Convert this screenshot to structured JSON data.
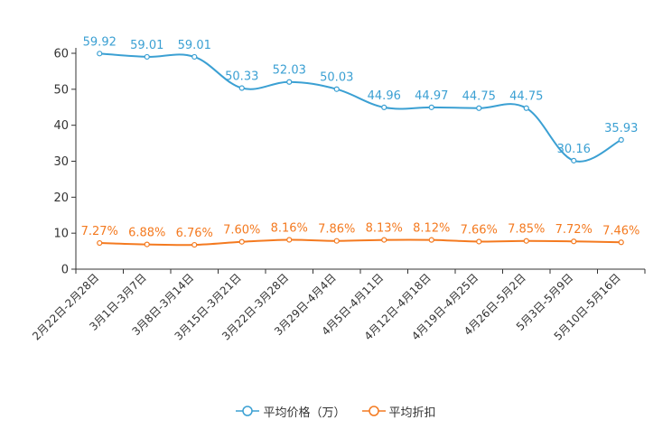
{
  "chart_data": {
    "type": "line",
    "categories": [
      "2月22日-2月28日",
      "3月1日-3月7日",
      "3月8日-3月14日",
      "3月15日-3月21日",
      "3月22日-3月28日",
      "3月29日-4月4日",
      "4月5日-4月11日",
      "4月12日-4月18日",
      "4月19日-4月25日",
      "4月26日-5月2日",
      "5月3日-5月9日",
      "5月10日-5月16日"
    ],
    "ylim": [
      0,
      60
    ],
    "yticks": [
      0,
      10,
      20,
      30,
      40,
      50,
      60
    ],
    "series": [
      {
        "name": "平均价格（万）",
        "color": "#3ba0d3",
        "values": [
          59.92,
          59.01,
          59.01,
          50.33,
          52.03,
          50.03,
          44.96,
          44.97,
          44.75,
          44.75,
          30.16,
          35.93
        ],
        "labels": [
          "59.92",
          "59.01",
          "59.01",
          "50.33",
          "52.03",
          "50.03",
          "44.96",
          "44.97",
          "44.75",
          "44.75",
          "30.16",
          "35.93"
        ]
      },
      {
        "name": "平均折扣",
        "color": "#f47a20",
        "values": [
          7.27,
          6.88,
          6.76,
          7.6,
          8.16,
          7.86,
          8.13,
          8.12,
          7.66,
          7.85,
          7.72,
          7.46
        ],
        "labels": [
          "7.27%",
          "6.88%",
          "6.76%",
          "7.60%",
          "8.16%",
          "7.86%",
          "8.13%",
          "8.12%",
          "7.66%",
          "7.85%",
          "7.72%",
          "7.46%"
        ]
      }
    ],
    "legend_position": "bottom-center"
  }
}
